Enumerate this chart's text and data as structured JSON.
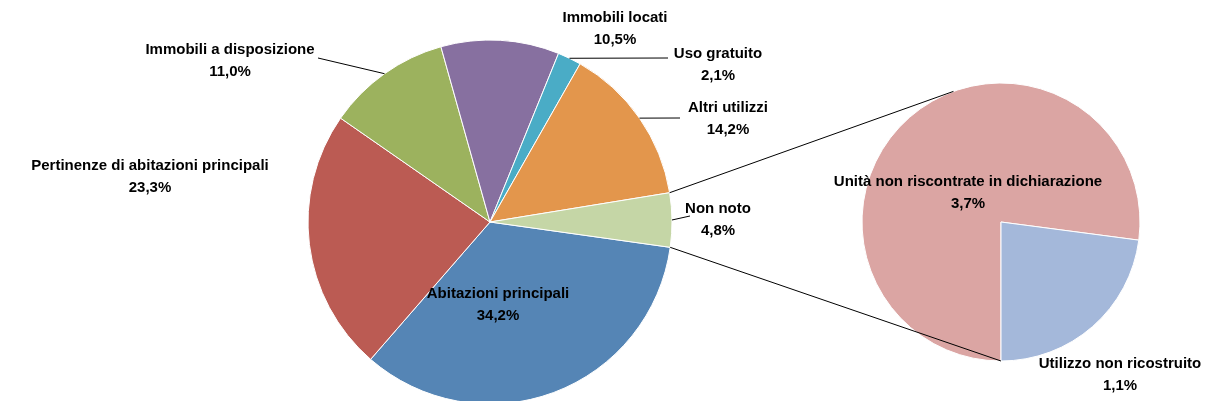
{
  "chart_data": [
    {
      "type": "pie",
      "categories": [
        "Abitazioni principali",
        "Pertinenze di abitazioni principali",
        "Immobili a disposizione",
        "Immobili locati",
        "Uso gratuito",
        "Altri utilizzi",
        "Non noto"
      ],
      "values": [
        34.2,
        23.3,
        11.0,
        10.5,
        2.1,
        14.2,
        4.8
      ],
      "value_labels": [
        "34,2%",
        "23,3%",
        "11,0%",
        "10,5%",
        "2,1%",
        "14,2%",
        "4,8%"
      ],
      "colors": [
        "#5585b5",
        "#bb5b53",
        "#9cb25e",
        "#8770a0",
        "#4aacc6",
        "#e3964c",
        "#c5d6a6"
      ]
    },
    {
      "type": "pie",
      "categories": [
        "Unità non riscontrate in dichiarazione",
        "Utilizzo non ricostruito"
      ],
      "values": [
        3.7,
        1.1
      ],
      "value_labels": [
        "3,7%",
        "1,1%"
      ],
      "colors": [
        "#dba5a3",
        "#a4b8da"
      ]
    }
  ]
}
